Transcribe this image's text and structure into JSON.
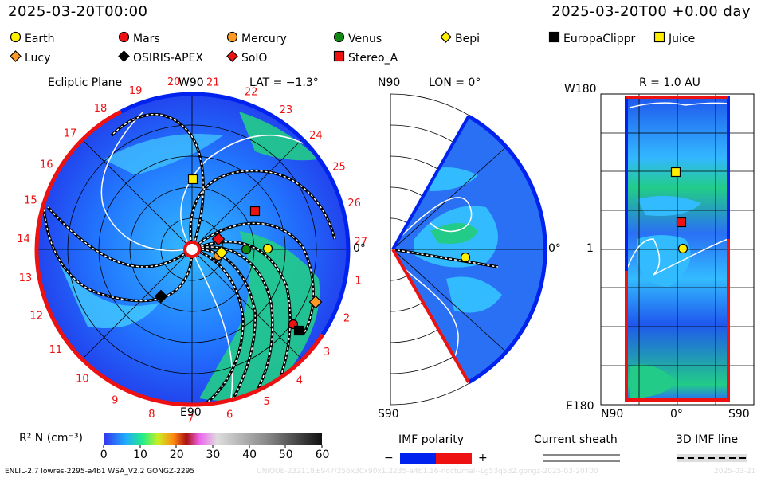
{
  "header": {
    "datetime": "2025-03-20T00:00",
    "offset": "2025-03-20T00 +0.00 day"
  },
  "bodies": [
    {
      "name": "Earth",
      "shape": "circle",
      "color": "#ffee00"
    },
    {
      "name": "Mars",
      "shape": "circle",
      "color": "#ee1111"
    },
    {
      "name": "Mercury",
      "shape": "circle",
      "color": "#ff9922"
    },
    {
      "name": "Venus",
      "shape": "circle",
      "color": "#118811"
    },
    {
      "name": "Bepi",
      "shape": "diamond",
      "color": "#ffee00"
    },
    {
      "name": "EuropaClippr",
      "shape": "square",
      "color": "#000000"
    },
    {
      "name": "Juice",
      "shape": "square",
      "color": "#ffee00"
    },
    {
      "name": "Lucy",
      "shape": "diamond",
      "color": "#ff9922"
    },
    {
      "name": "OSIRIS-APEX",
      "shape": "diamond",
      "color": "#000000"
    },
    {
      "name": "SolO",
      "shape": "diamond",
      "color": "#ee1111"
    },
    {
      "name": "Stereo_A",
      "shape": "square",
      "color": "#ee1111"
    }
  ],
  "ecliptic": {
    "title": "Ecliptic Plane",
    "top_label": "W90",
    "lat": "LAT = −1.3°",
    "bottom_label": "E90",
    "right_label": "0°",
    "sector_numbers": [
      "1",
      "2",
      "3",
      "4",
      "5",
      "6",
      "7",
      "8",
      "9",
      "10",
      "11",
      "12",
      "13",
      "14",
      "15",
      "16",
      "17",
      "18",
      "19",
      "20",
      "21",
      "22",
      "23",
      "24",
      "25",
      "26",
      "27"
    ]
  },
  "meridional": {
    "top_label": "N90",
    "lon": "LON = 0°",
    "bottom_label": "S90",
    "right_label": "0°"
  },
  "radial": {
    "title": "R = 1.0 AU",
    "top_left": "W180",
    "mid_left": "1",
    "bottom_left": "E180",
    "bottom_ticks": [
      "N90",
      "0°",
      "S90"
    ]
  },
  "colorbar": {
    "label": "R² N (cm⁻³)",
    "ticks": [
      "0",
      "10",
      "20",
      "30",
      "40",
      "50",
      "60"
    ]
  },
  "imf": {
    "title": "IMF polarity",
    "minus": "−",
    "plus": "+",
    "colors": {
      "negative": "#0022ee",
      "positive": "#ee1111"
    }
  },
  "sheath": {
    "title": "Current sheath"
  },
  "imf3d": {
    "title": "3D IMF line"
  },
  "footer": {
    "model": "ENLIL-2.7 lowres-2295-a4b1 WSA_V2.2 GONGZ-2295",
    "run": "UNIQUE‑232118±947/256x30x90x1.2235‑a4b1.16‑nocturnal‑‑Lg53q5d2.gongz‑2025‑03‑20T00",
    "date": "2025-03-21"
  }
}
